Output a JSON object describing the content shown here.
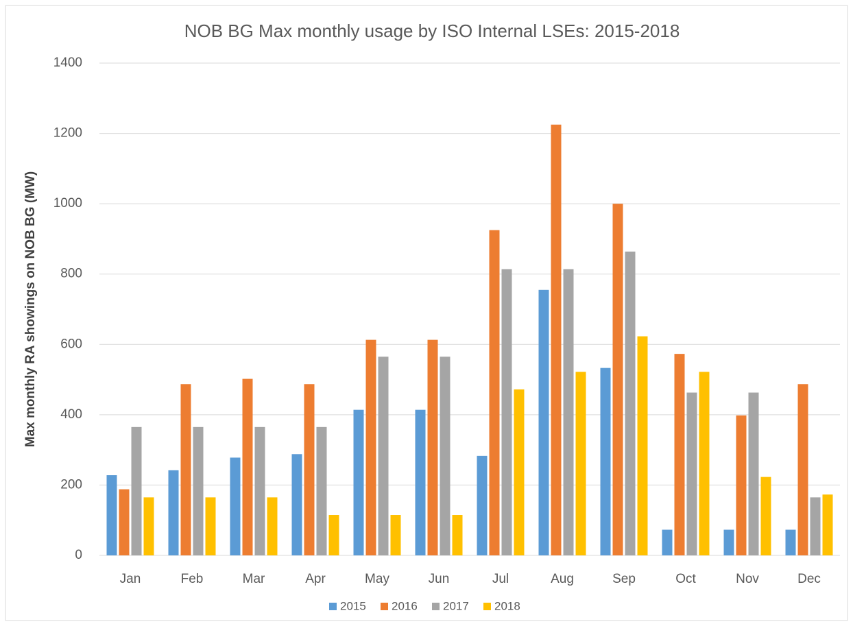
{
  "chart_data": {
    "type": "bar",
    "title": "NOB BG Max monthly usage by ISO Internal LSEs: 2015-2018",
    "y_label": "Max monthly RA showings on NOB BG (MW)",
    "categories": [
      "Jan",
      "Feb",
      "Mar",
      "Apr",
      "May",
      "Jun",
      "Jul",
      "Aug",
      "Sep",
      "Oct",
      "Nov",
      "Dec"
    ],
    "series": [
      {
        "name": "2015",
        "color": "#5b9bd5",
        "values": [
          228,
          242,
          278,
          288,
          414,
          414,
          283,
          755,
          533,
          73,
          73,
          73
        ]
      },
      {
        "name": "2016",
        "color": "#ed7d31",
        "values": [
          188,
          487,
          502,
          487,
          613,
          613,
          925,
          1225,
          1000,
          573,
          398,
          487
        ]
      },
      {
        "name": "2017",
        "color": "#a5a5a5",
        "values": [
          365,
          365,
          365,
          365,
          565,
          565,
          814,
          814,
          864,
          463,
          463,
          165
        ]
      },
      {
        "name": "2018",
        "color": "#ffc000",
        "values": [
          165,
          165,
          165,
          115,
          115,
          115,
          472,
          522,
          623,
          522,
          223,
          173
        ]
      }
    ],
    "ylim": [
      0,
      1400
    ],
    "yticks": [
      0,
      200,
      400,
      600,
      800,
      1000,
      1200,
      1400
    ],
    "grid": true,
    "legend": "bottom"
  }
}
